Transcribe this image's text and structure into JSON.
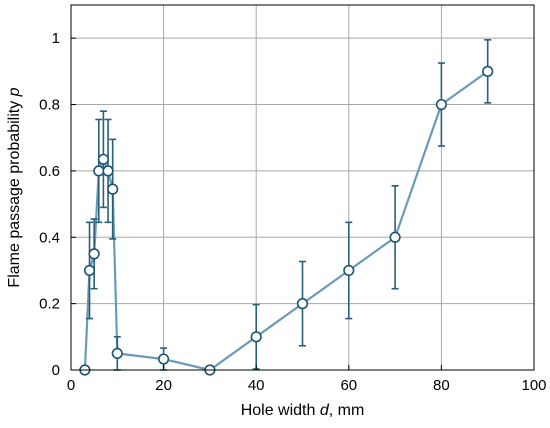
{
  "chart_data": {
    "type": "line",
    "title": "",
    "xlabel": "Hole width d, mm",
    "xlabel_parts": [
      "Hole width ",
      "d",
      ", mm"
    ],
    "ylabel": "Flame passage probability p",
    "ylabel_parts": [
      "Flame passage probability ",
      "p"
    ],
    "xlim": [
      0,
      100
    ],
    "ylim": [
      0,
      1.1
    ],
    "xticks": [
      0,
      20,
      40,
      60,
      80,
      100
    ],
    "yticks": [
      0,
      0.2,
      0.4,
      0.6,
      0.8,
      1
    ],
    "xtick_labels": [
      "0",
      "20",
      "40",
      "60",
      "80",
      "100"
    ],
    "ytick_labels": [
      "0",
      "0.2",
      "0.4",
      "0.6",
      "0.8",
      "1"
    ],
    "grid": true,
    "legend": "none",
    "colors": {
      "line": "#6a9ab8",
      "errorbar": "#2a5f78",
      "marker_edge": "#1c5570",
      "marker_fill": "#ffffff",
      "grid": "#a8a8a8",
      "axis": "#000000"
    },
    "series": [
      {
        "x": [
          3,
          4,
          5,
          6,
          7,
          8,
          9,
          10,
          20,
          30,
          40,
          50,
          60,
          70,
          80,
          90
        ],
        "y": [
          0,
          0.3,
          0.35,
          0.6,
          0.635,
          0.6,
          0.545,
          0.05,
          0.033,
          0,
          0.1,
          0.2,
          0.3,
          0.4,
          0.8,
          0.9
        ],
        "err": [
          0,
          0.145,
          0.105,
          0.155,
          0.145,
          0.155,
          0.15,
          0.05,
          0.033,
          0,
          0.097,
          0.127,
          0.145,
          0.155,
          0.125,
          0.095
        ]
      }
    ]
  }
}
